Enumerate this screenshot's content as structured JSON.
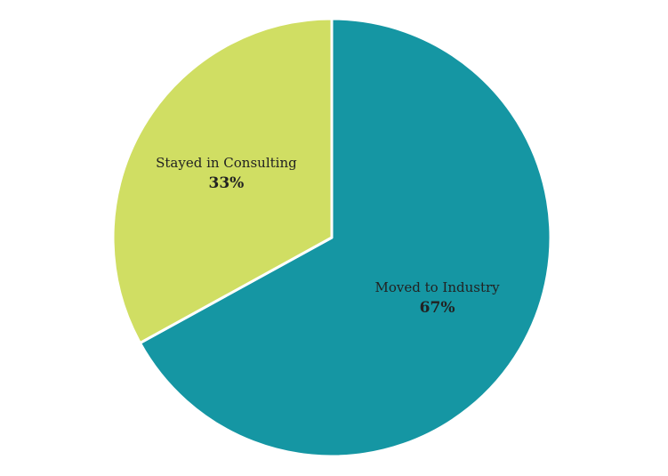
{
  "chart_data": {
    "type": "pie",
    "start_angle_deg": 0,
    "direction": "clockwise",
    "slices": [
      {
        "label": "Moved to Industry",
        "value": 67,
        "display": "67%",
        "color": "#1596a3"
      },
      {
        "label": "Stayed in Consulting",
        "value": 33,
        "display": "33%",
        "color": "#d0de63"
      }
    ],
    "separator_color": "#ffffff"
  }
}
